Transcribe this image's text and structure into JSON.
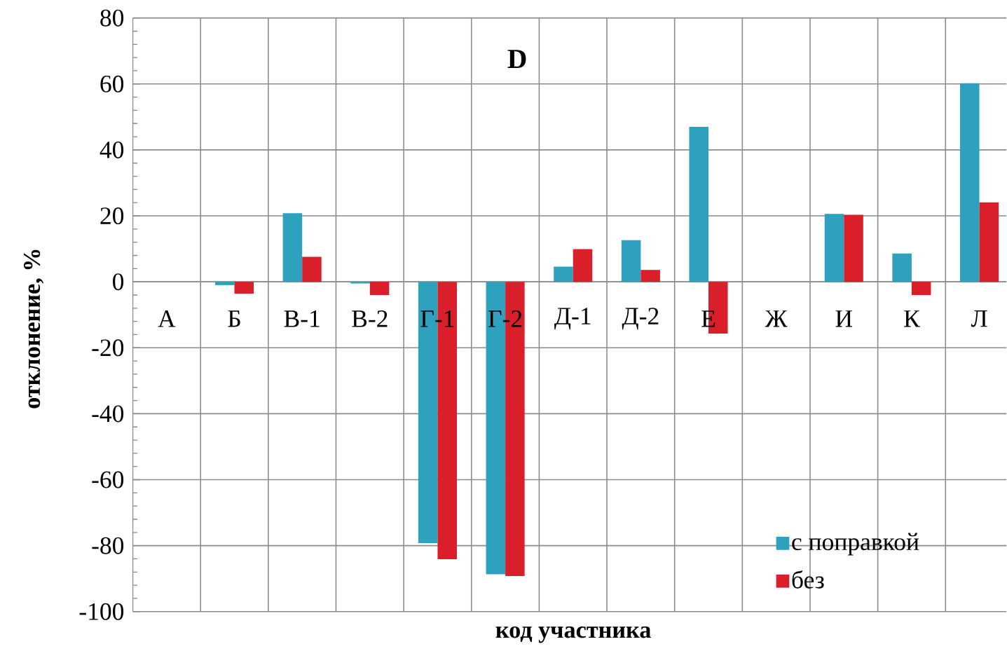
{
  "chart_data": {
    "type": "bar",
    "title": "D",
    "xlabel": "код участника",
    "ylabel": "отклонение, %",
    "categories": [
      "А",
      "Б",
      "В-1",
      "В-2",
      "Г-1",
      "Г-2",
      "Д-1",
      "Д-2",
      "Е",
      "Ж",
      "И",
      "К",
      "Л"
    ],
    "series": [
      {
        "name": "с поправкой",
        "color": "#2ea1bf",
        "values": [
          null,
          -1.0,
          20.8,
          -0.5,
          -79.2,
          -88.7,
          4.6,
          12.6,
          47.0,
          null,
          20.6,
          8.6,
          60.2
        ]
      },
      {
        "name": "без",
        "color": "#d91f2a",
        "values": [
          null,
          -3.6,
          7.6,
          -4.0,
          -84.1,
          -89.2,
          9.9,
          3.6,
          -15.7,
          null,
          20.3,
          -4.0,
          24.1
        ]
      }
    ],
    "ylim": [
      -100,
      80
    ],
    "yticks": [
      -100,
      -80,
      -60,
      -40,
      -20,
      0,
      20,
      40,
      60,
      80
    ],
    "grid": true,
    "legend": "bottom right"
  }
}
